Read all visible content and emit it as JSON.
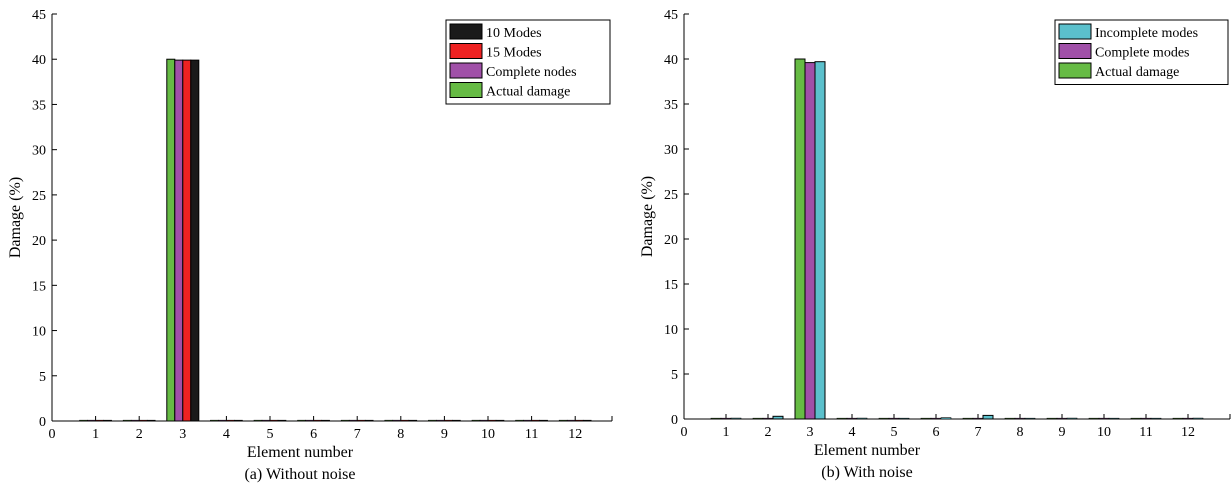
{
  "chart_data": [
    {
      "type": "bar",
      "caption": "(a) Without noise",
      "xlabel": "Element number",
      "ylabel": "Damage (%)",
      "ylim": [
        0,
        45
      ],
      "yticks": [
        0,
        5,
        10,
        15,
        20,
        25,
        30,
        35,
        40,
        45
      ],
      "xticks": [
        "0",
        "1",
        "2",
        "3",
        "4",
        "5",
        "6",
        "7",
        "8",
        "9",
        "10",
        "11",
        "12"
      ],
      "categories": [
        "1",
        "2",
        "3",
        "4",
        "5",
        "6",
        "7",
        "8",
        "9",
        "10",
        "11",
        "12"
      ],
      "legend_position": "top-right",
      "series": [
        {
          "name": "Actual damage",
          "color": "#66bb44",
          "values": [
            0,
            0,
            40,
            0,
            0,
            0,
            0,
            0,
            0,
            0,
            0,
            0
          ]
        },
        {
          "name": "Complete nodes",
          "color": "#a050a8",
          "values": [
            0,
            0,
            39.9,
            0,
            0,
            0,
            0,
            0,
            0,
            0,
            0,
            0
          ]
        },
        {
          "name": "15 Modes",
          "color": "#ee2222",
          "values": [
            0,
            0,
            39.9,
            0,
            0,
            0,
            0,
            0,
            0,
            0,
            0,
            0
          ]
        },
        {
          "name": "10 Modes",
          "color": "#1a1a1a",
          "values": [
            0.05,
            0,
            39.9,
            0.05,
            0.05,
            0.05,
            0.05,
            0.05,
            0.05,
            0.05,
            0.05,
            0.05
          ]
        }
      ],
      "legend_order": [
        "10 Modes",
        "15 Modes",
        "Complete nodes",
        "Actual damage"
      ]
    },
    {
      "type": "bar",
      "caption": "(b) With noise",
      "xlabel": "Element number",
      "ylabel": "Damage (%)",
      "ylim": [
        0,
        45
      ],
      "yticks": [
        0,
        5,
        10,
        15,
        20,
        25,
        30,
        35,
        40,
        45
      ],
      "xticks": [
        "0",
        "1",
        "2",
        "3",
        "4",
        "5",
        "6",
        "7",
        "8",
        "9",
        "10",
        "11",
        "12"
      ],
      "categories": [
        "1",
        "2",
        "3",
        "4",
        "5",
        "6",
        "7",
        "8",
        "9",
        "10",
        "11",
        "12"
      ],
      "legend_position": "top-right",
      "series": [
        {
          "name": "Actual damage",
          "color": "#66bb44",
          "values": [
            0,
            0,
            40,
            0,
            0,
            0,
            0,
            0,
            0,
            0,
            0,
            0
          ]
        },
        {
          "name": "Complete modes",
          "color": "#a050a8",
          "values": [
            0.05,
            0,
            39.6,
            0,
            0,
            0.05,
            0,
            0,
            0,
            0,
            0,
            0
          ]
        },
        {
          "name": "Incomplete modes",
          "color": "#5bc0cc",
          "values": [
            0.1,
            0.3,
            39.7,
            0.1,
            0.05,
            0.15,
            0.4,
            0.05,
            0.1,
            0.05,
            0.05,
            0.1
          ]
        }
      ],
      "legend_order": [
        "Incomplete modes",
        "Complete modes",
        "Actual damage"
      ]
    }
  ]
}
